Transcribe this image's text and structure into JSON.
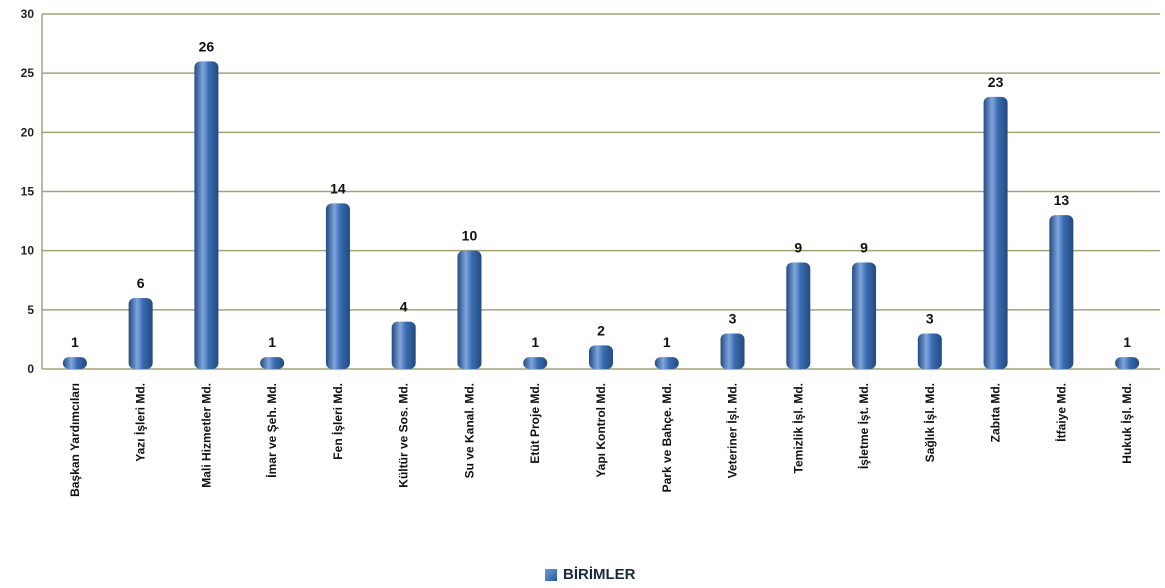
{
  "chart_data": {
    "type": "bar",
    "categories": [
      "Başkan Yardımcıları",
      "Yazı İşleri Md.",
      "Mali Hizmetler Md.",
      "İmar ve Şeh. Md.",
      "Fen İşleri Md.",
      "Kültür ve Sos. Md.",
      "Su ve Kanal. Md.",
      "Etüt Proje Md.",
      "Yapı Kontrol Md.",
      "Park ve Bahçe. Md.",
      "Veteriner İşl. Md.",
      "Temizlik İşl. Md.",
      "İşletme İşt. Md.",
      "Sağlık İşl. Md.",
      "Zabıta Md.",
      "İtfaiye Md.",
      "Hukuk İşl. Md."
    ],
    "series": [
      {
        "name": "BİRİMLER",
        "values": [
          1,
          6,
          26,
          1,
          14,
          4,
          10,
          1,
          2,
          1,
          3,
          9,
          9,
          3,
          23,
          13,
          1
        ]
      }
    ],
    "ylim": [
      0,
      30
    ],
    "yticks": [
      0,
      5,
      10,
      15,
      20,
      25,
      30
    ],
    "grid": true,
    "legend_position": "bottom",
    "colors": {
      "bar": "#3a6bb0",
      "bar_light": "#7fa6dc",
      "bar_dark": "#234a80",
      "grid": "#a5a27a"
    }
  }
}
